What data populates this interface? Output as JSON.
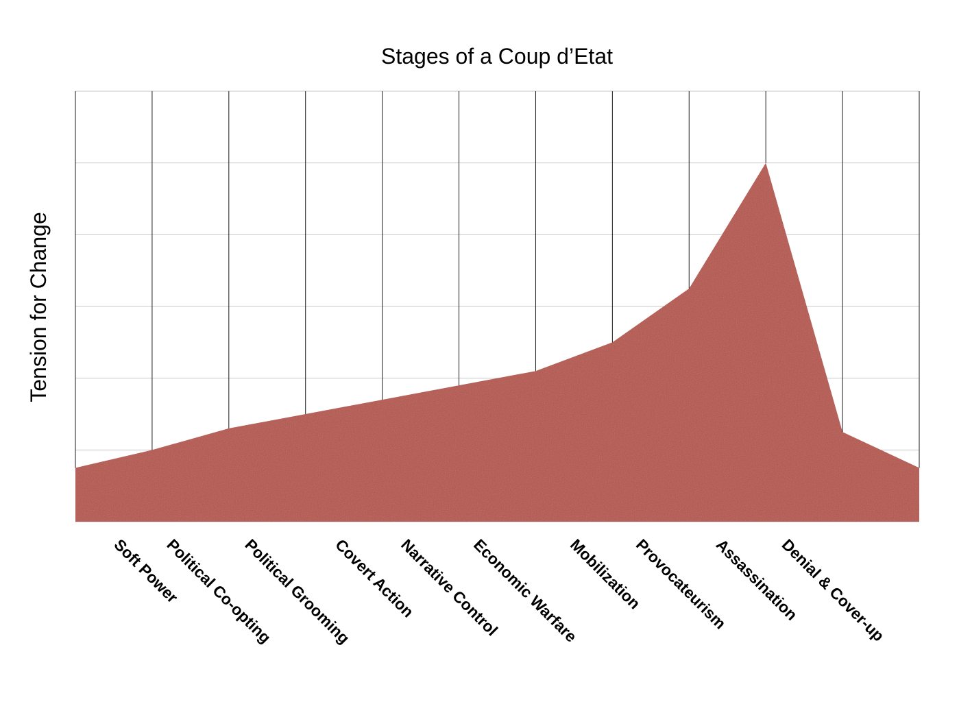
{
  "chart_data": {
    "type": "area",
    "title": "Stages of a Coup d’Etat",
    "xlabel": "",
    "ylabel": "Tension for Change",
    "categories": [
      "Soft Power",
      "Political Co-opting",
      "Political Grooming",
      "Covert Action",
      "Narrative Control",
      "Economic Warfare",
      "Mobilization",
      "Provocateurism",
      "Assassination",
      "Denial & Cover-up"
    ],
    "x": [
      0,
      1,
      2,
      3,
      4,
      5,
      6,
      7,
      8,
      9,
      10,
      11
    ],
    "values": [
      0.75,
      1.0,
      1.3,
      1.5,
      1.7,
      1.9,
      2.1,
      2.5,
      3.25,
      5.0,
      1.25,
      0.75
    ],
    "ylim": [
      0,
      6
    ],
    "xlim": [
      0,
      11
    ],
    "grid": true,
    "legend": "none",
    "show_y_tick_labels": false,
    "fill_color": "#b5524a",
    "fill_color_dark": "#a8463f",
    "grid_vertical_color": "#1a1a1a",
    "grid_horizontal_color": "#c8c8c8"
  }
}
